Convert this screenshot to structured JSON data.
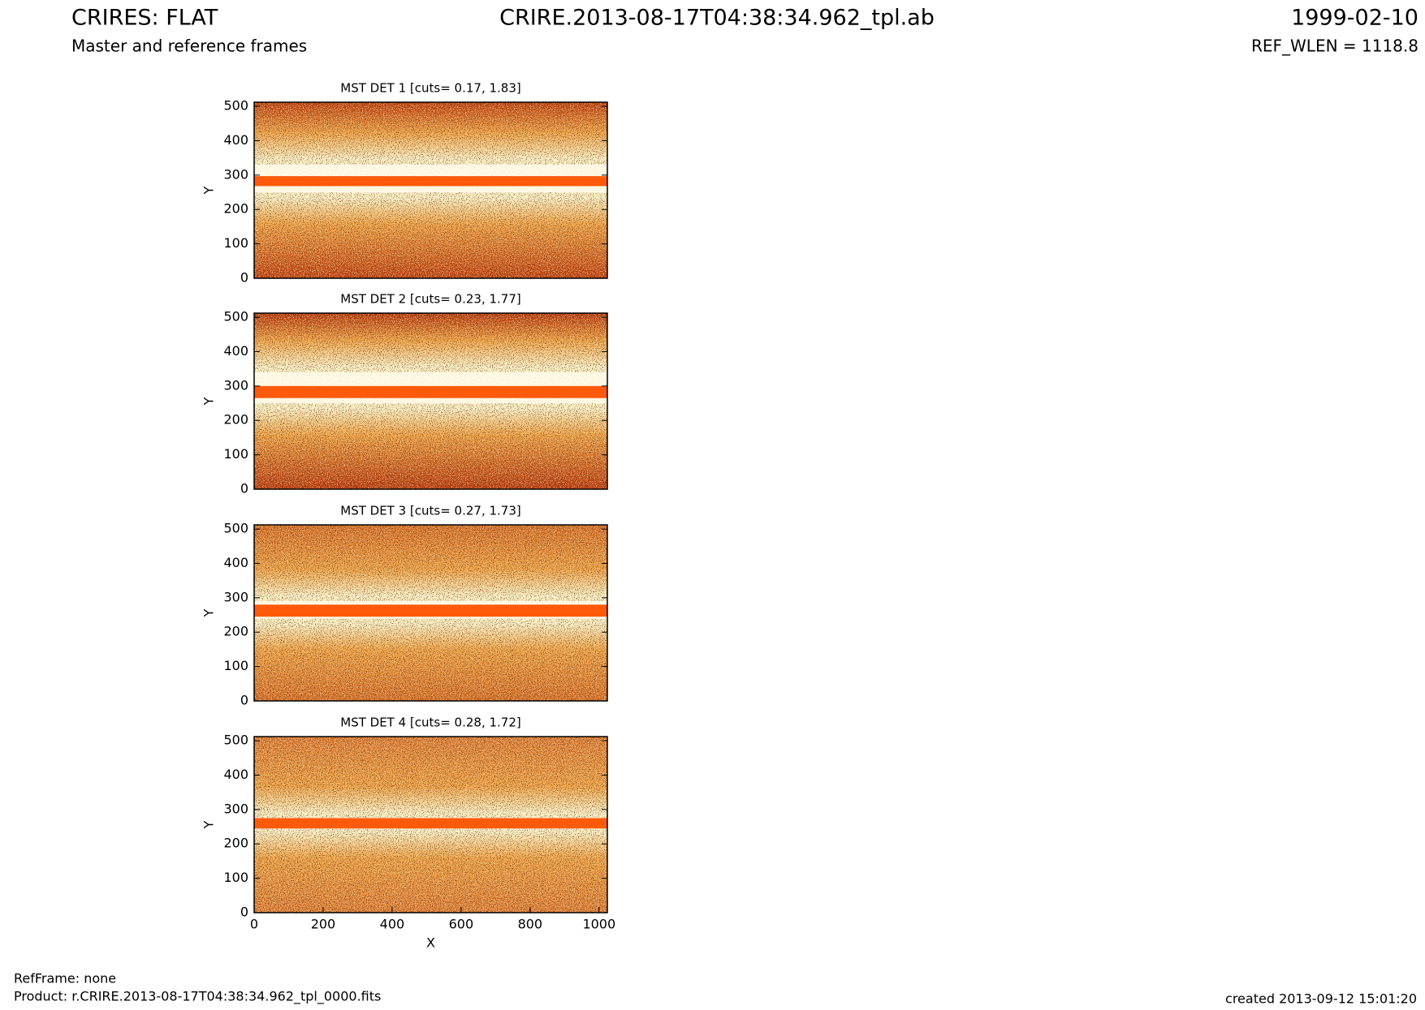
{
  "header": {
    "title": "CRIRES: FLAT",
    "subtitle": "Master and reference frames",
    "file": "CRIRE.2013-08-17T04:38:34.962_tpl.ab",
    "date": "1999-02-10",
    "ref_wlen": "REF_WLEN = 1118.8"
  },
  "footer": {
    "ref_frame": "RefFrame: none",
    "product": "Product: r.CRIRE.2013-08-17T04:38:34.962_tpl_0000.fits",
    "created": "created 2013-09-12 15:01:20"
  },
  "chart_data": [
    {
      "type": "image",
      "title": "MST DET 1 [cuts= 0.17, 1.83]",
      "y_label": "Y",
      "xlim": [
        0,
        1024
      ],
      "ylim": [
        0,
        512
      ],
      "yticks": [
        0,
        100,
        200,
        300,
        400,
        500
      ]
    },
    {
      "type": "image",
      "title": "MST DET 2 [cuts= 0.23, 1.77]",
      "y_label": "Y",
      "xlim": [
        0,
        1024
      ],
      "ylim": [
        0,
        512
      ],
      "yticks": [
        0,
        100,
        200,
        300,
        400,
        500
      ]
    },
    {
      "type": "image",
      "title": "MST DET 3 [cuts= 0.27, 1.73]",
      "y_label": "Y",
      "xlim": [
        0,
        1024
      ],
      "ylim": [
        0,
        512
      ],
      "yticks": [
        0,
        100,
        200,
        300,
        400,
        500
      ]
    },
    {
      "type": "image",
      "title": "MST DET 4 [cuts= 0.28, 1.72]",
      "y_label": "Y",
      "x_label": "X",
      "xlim": [
        0,
        1024
      ],
      "ylim": [
        0,
        512
      ],
      "yticks": [
        0,
        100,
        200,
        300,
        400,
        500
      ],
      "xticks": [
        0,
        200,
        400,
        600,
        800,
        1000
      ]
    }
  ]
}
